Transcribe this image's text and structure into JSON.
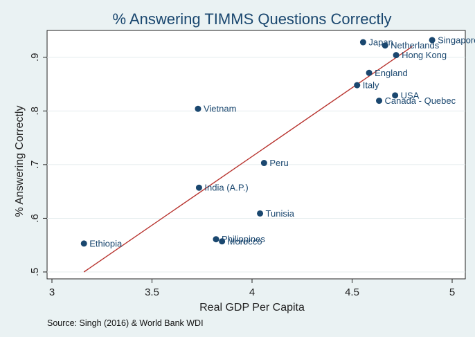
{
  "chart_data": {
    "type": "scatter",
    "title": "% Answering TIMMS Questions Correctly",
    "xlabel": "Real GDP Per Capita",
    "ylabel": "% Answering Correctly",
    "note": "Source: Singh (2016) & World Bank WDI",
    "xlim": [
      3,
      5
    ],
    "ylim": [
      0.5,
      0.95
    ],
    "xticks": [
      3,
      3.5,
      4,
      4.5,
      5
    ],
    "xtick_labels": [
      "3",
      "3.5",
      "4",
      "4.5",
      "5"
    ],
    "yticks": [
      0.5,
      0.6,
      0.7,
      0.8,
      0.9
    ],
    "ytick_labels": [
      ".5",
      ".6",
      ".7",
      ".8",
      ".9"
    ],
    "grid": true,
    "marker_color": "#1a476f",
    "fit_color": "#b8342f",
    "points": [
      {
        "label": "Singapore",
        "x": 4.9,
        "y": 0.932
      },
      {
        "label": "Japan",
        "x": 4.555,
        "y": 0.928
      },
      {
        "label": "Netherlands",
        "x": 4.665,
        "y": 0.922
      },
      {
        "label": "Hong Kong",
        "x": 4.72,
        "y": 0.904
      },
      {
        "label": "England",
        "x": 4.585,
        "y": 0.871
      },
      {
        "label": "Italy",
        "x": 4.525,
        "y": 0.848
      },
      {
        "label": "USA",
        "x": 4.715,
        "y": 0.829
      },
      {
        "label": "Canada - Quebec",
        "x": 4.635,
        "y": 0.819
      },
      {
        "label": "Vietnam",
        "x": 3.73,
        "y": 0.804
      },
      {
        "label": "Peru",
        "x": 4.06,
        "y": 0.703
      },
      {
        "label": "India (A.P.)",
        "x": 3.735,
        "y": 0.657
      },
      {
        "label": "Tunisia",
        "x": 4.04,
        "y": 0.609
      },
      {
        "label": "Philippines",
        "x": 3.82,
        "y": 0.561
      },
      {
        "label": "Morocco",
        "x": 3.85,
        "y": 0.557
      },
      {
        "label": "Ethiopia",
        "x": 3.16,
        "y": 0.553
      }
    ],
    "fit_line": {
      "x": [
        3.16,
        4.8
      ],
      "y": [
        0.5,
        0.92
      ]
    }
  }
}
